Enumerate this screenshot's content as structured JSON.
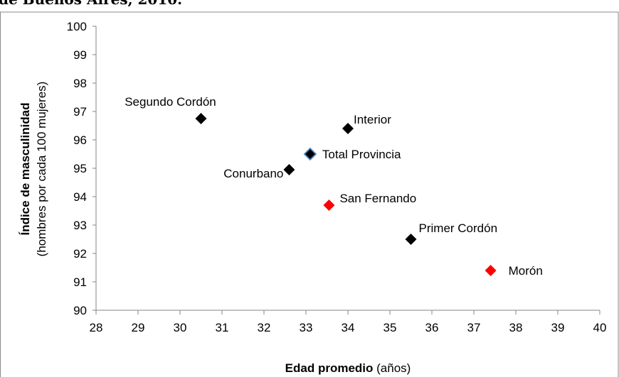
{
  "chart_data": {
    "type": "scatter",
    "title": "de Buenos Aires, 2010.",
    "xlabel": {
      "bold": "Edad promedio",
      "normal": " (años)"
    },
    "ylabel": {
      "bold": "Índice de masculinidad",
      "normal": "(hombres por cada 100 mujeres)"
    },
    "xlim": [
      28,
      40
    ],
    "ylim": [
      90,
      100
    ],
    "xticks": [
      28,
      29,
      30,
      31,
      32,
      33,
      34,
      35,
      36,
      37,
      38,
      39,
      40
    ],
    "yticks": [
      90,
      91,
      92,
      93,
      94,
      95,
      96,
      97,
      98,
      99,
      100
    ],
    "grid": false,
    "legend": "none",
    "colors": {
      "default": "#000000",
      "highlight": "#ff0000",
      "total_border": "#4f81bd"
    },
    "points": [
      {
        "label": "Segundo Cordón",
        "x": 30.5,
        "y": 96.75,
        "style": "default"
      },
      {
        "label": "Interior",
        "x": 34.0,
        "y": 96.4,
        "style": "default"
      },
      {
        "label": "Total  Provincia",
        "x": 33.1,
        "y": 95.5,
        "style": "total"
      },
      {
        "label": "Conurbano",
        "x": 32.6,
        "y": 94.95,
        "style": "default"
      },
      {
        "label": "San Fernando",
        "x": 33.55,
        "y": 93.7,
        "style": "highlight"
      },
      {
        "label": "Primer Cordón",
        "x": 35.5,
        "y": 92.5,
        "style": "default"
      },
      {
        "label": "Morón",
        "x": 37.4,
        "y": 91.4,
        "style": "highlight"
      }
    ]
  }
}
